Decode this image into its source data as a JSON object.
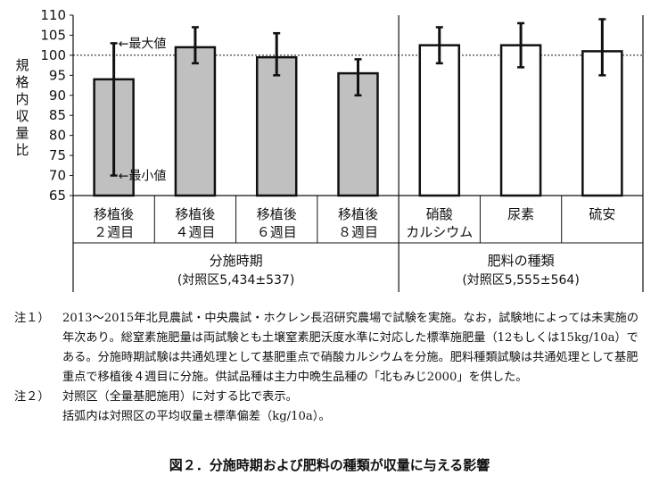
{
  "chart_data": {
    "type": "bar",
    "ylabel": "規格内収量比",
    "ylim": [
      65,
      110
    ],
    "yticks": [
      65,
      70,
      75,
      80,
      85,
      90,
      95,
      100,
      105,
      110
    ],
    "reference_line": 100,
    "categories": [
      {
        "label1": "移植後",
        "label2": "２週目",
        "group": 0,
        "value": 94,
        "max": 103,
        "min": 70,
        "fill": "#c0c0c0"
      },
      {
        "label1": "移植後",
        "label2": "４週目",
        "group": 0,
        "value": 102,
        "max": 107,
        "min": 98,
        "fill": "#c0c0c0"
      },
      {
        "label1": "移植後",
        "label2": "６週目",
        "group": 0,
        "value": 99.5,
        "max": 105.5,
        "min": 95,
        "fill": "#c0c0c0"
      },
      {
        "label1": "移植後",
        "label2": "８週目",
        "group": 0,
        "value": 95.5,
        "max": 99,
        "min": 90,
        "fill": "#c0c0c0"
      },
      {
        "label1": "硝酸",
        "label2": "カルシウム",
        "group": 1,
        "value": 102.5,
        "max": 107,
        "min": 98,
        "fill": "#ffffff"
      },
      {
        "label1": "尿素",
        "label2": "",
        "group": 1,
        "value": 102.5,
        "max": 108,
        "min": 97,
        "fill": "#ffffff"
      },
      {
        "label1": "硫安",
        "label2": "",
        "group": 1,
        "value": 101,
        "max": 109,
        "min": 95,
        "fill": "#ffffff"
      }
    ],
    "groups": [
      {
        "name": "分施時期",
        "sub": "(対照区5,434±537)"
      },
      {
        "name": "肥料の種類",
        "sub": "(対照区5,555±564)"
      }
    ],
    "annotations": {
      "max_label": "←最大値",
      "min_label": "←最小値"
    }
  },
  "notes": [
    {
      "label": "注１）",
      "text": "2013～2015年北見農試・中央農試・ホクレン長沼研究農場で試験を実施。なお，試験地によっては未実施の年次あり。総窒素施肥量は両試験とも土壌窒素肥沃度水準に対応した標準施肥量（12もしくは15kg/10a）である。分施時期試験は共通処理として基肥重点で硝酸カルシウムを分施。肥料種類試験は共通処理として基肥重点で移植後４週目に分施。供試品種は主力中晩生品種の「北もみじ2000」を供した。"
    },
    {
      "label": "注２）",
      "text": "対照区（全量基肥施用）に対する比で表示。"
    },
    {
      "label": "",
      "text": "括弧内は対照区の平均収量±標準偏差（kg/10a）。"
    }
  ],
  "caption": "図２．分施時期および肥料の種類が収量に与える影響"
}
